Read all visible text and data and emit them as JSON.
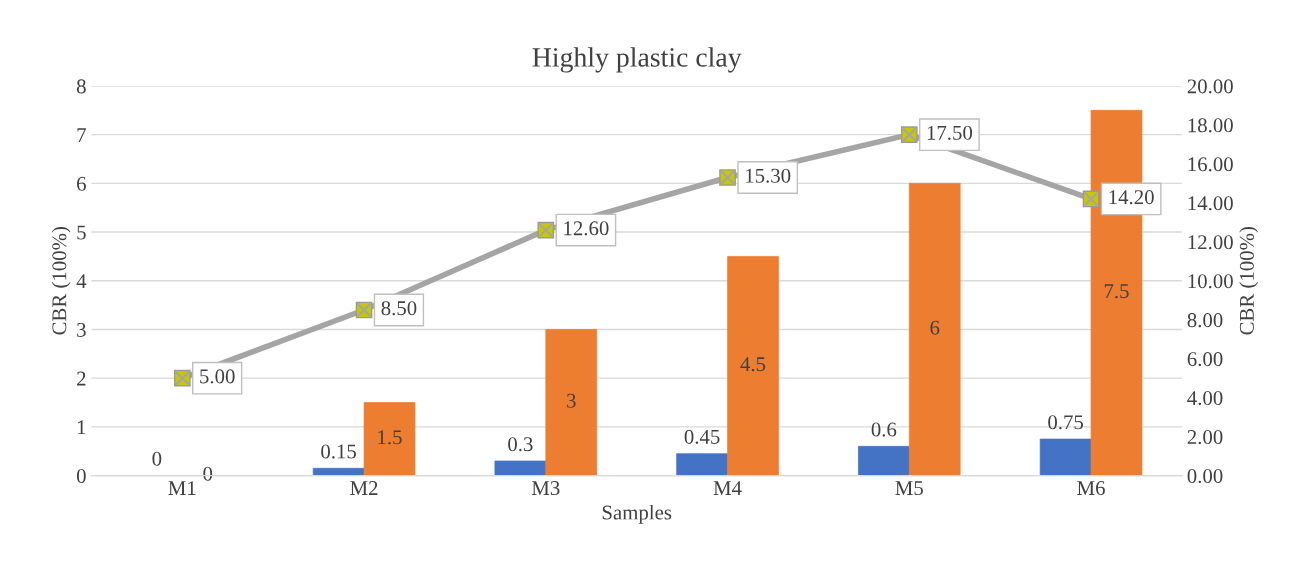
{
  "chart_data": {
    "type": "bar",
    "title": "Highly plastic clay",
    "xlabel": "Samples",
    "ylabel": "CBR (100%)",
    "y2label": "CBR (100%)",
    "categories": [
      "M1",
      "M2",
      "M3",
      "M4",
      "M5",
      "M6"
    ],
    "series": [
      {
        "color": "#4472c4",
        "values": [
          0,
          0.15,
          0.3,
          0.45,
          0.6,
          0.75
        ],
        "value_labels": [
          "0",
          "0.15",
          "0.3",
          "0.45",
          "0.6",
          "0.75"
        ]
      },
      {
        "color": "#ed7d31",
        "values": [
          0,
          1.5,
          3,
          4.5,
          6,
          7.5
        ],
        "value_labels": [
          "0",
          "1.5",
          "3",
          "4.5",
          "6",
          "7.5"
        ]
      },
      {
        "type": "line",
        "axis": "y2",
        "color": "#a5a5a5",
        "marker": "square",
        "values": [
          5.0,
          8.5,
          12.6,
          15.3,
          17.5,
          14.2
        ],
        "value_labels": [
          "5.00",
          "8.50",
          "12.60",
          "15.30",
          "17.50",
          "14.20"
        ]
      }
    ],
    "ylim": [
      0,
      8
    ],
    "yticks": [
      0,
      1,
      2,
      3,
      4,
      5,
      6,
      7,
      8
    ],
    "y2lim": [
      0,
      20
    ],
    "y2ticks": [
      {
        "value": 0,
        "label": "0.00"
      },
      {
        "value": 2,
        "label": "2.00"
      },
      {
        "value": 4,
        "label": "4.00"
      },
      {
        "value": 6,
        "label": "6.00"
      },
      {
        "value": 8,
        "label": "8.00"
      },
      {
        "value": 10,
        "label": "10.00"
      },
      {
        "value": 12,
        "label": "12.00"
      },
      {
        "value": 14,
        "label": "14.00"
      },
      {
        "value": 16,
        "label": "16.00"
      },
      {
        "value": 18,
        "label": "18.00"
      },
      {
        "value": 20,
        "label": "20.00"
      }
    ],
    "grid": "y"
  }
}
